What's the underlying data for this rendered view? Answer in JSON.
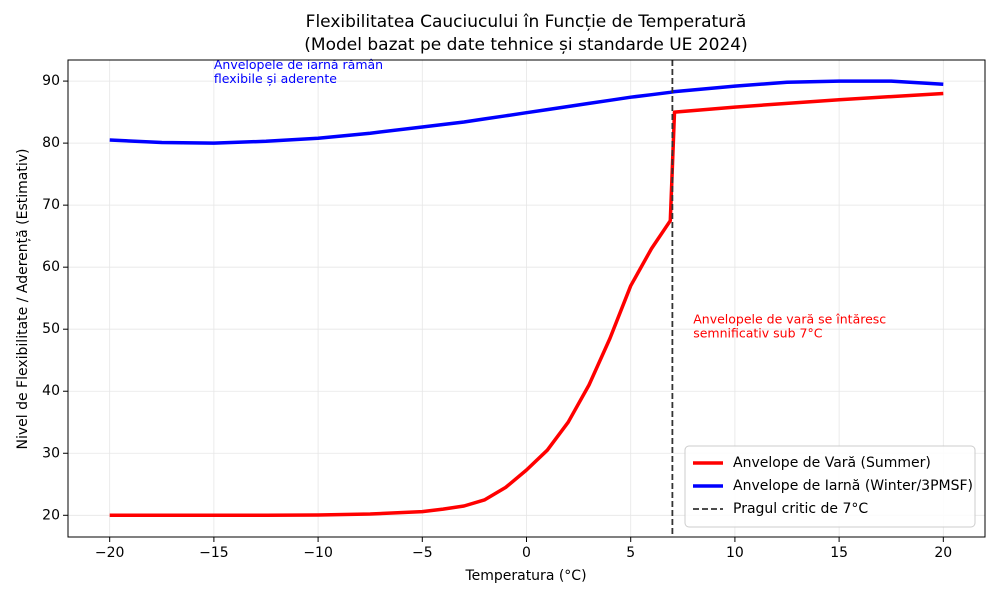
{
  "chart_data": {
    "type": "line",
    "title": "Flexibilitatea Cauciucului în Funcție de Temperatură",
    "subtitle": "(Model bazat pe date tehnice și standarde UE 2024)",
    "x_label": "Temperatura (°C)",
    "y_label": "Nivel de Flexibilitate / Aderență (Estimativ)",
    "x": [
      -20,
      -17.5,
      -15,
      -12.5,
      -10,
      -7.5,
      -5,
      -4,
      -3,
      -2,
      -1,
      0,
      1,
      2,
      3,
      4,
      5,
      6,
      6.9,
      7.1,
      10,
      12.5,
      15,
      17.5,
      20
    ],
    "series": [
      {
        "name": "Anvelope de Vară (Summer)",
        "color": "#ff0000",
        "values": [
          20,
          20,
          20,
          20,
          20.05,
          20.2,
          20.6,
          21,
          21.5,
          22.5,
          24.5,
          27.3,
          30.5,
          35,
          41,
          48.5,
          57,
          63,
          67.5,
          85,
          85.8,
          86.4,
          87,
          87.5,
          88
        ]
      },
      {
        "name": "Anvelope de Iarnă (Winter/3PMSF)",
        "color": "#0000ff",
        "values": [
          80.5,
          80.1,
          80,
          80.3,
          80.8,
          81.6,
          82.6,
          83,
          83.4,
          83.9,
          84.4,
          84.9,
          85.4,
          85.9,
          86.4,
          86.9,
          87.4,
          87.8,
          88.2,
          88.3,
          89.2,
          89.8,
          90,
          90,
          89.5
        ]
      }
    ],
    "vlines": [
      {
        "x": 7,
        "name": "Pragul critic de 7°C",
        "color": "#333333"
      }
    ],
    "annotations": [
      {
        "lines": [
          "Anvelopele de iarnă rămân",
          "flexibile și aderente"
        ],
        "x": -15,
        "y": 92.5,
        "color": "#0000ff"
      },
      {
        "lines": [
          "Anvelopele de vară se întăresc",
          "semnificativ sub 7°C"
        ],
        "x": 8,
        "y": 51.5,
        "color": "#ff0000"
      }
    ],
    "xlim": [
      -22,
      22
    ],
    "ylim": [
      16.5,
      93.4
    ],
    "xticks": [
      {
        "value": -20,
        "label": "−20"
      },
      {
        "value": -15,
        "label": "−15"
      },
      {
        "value": -10,
        "label": "−10"
      },
      {
        "value": -5,
        "label": "−5"
      },
      0,
      5,
      10,
      15,
      20
    ],
    "yticks": [
      20,
      30,
      40,
      50,
      60,
      70,
      80,
      90
    ],
    "grid": true,
    "legend": "lower right"
  }
}
